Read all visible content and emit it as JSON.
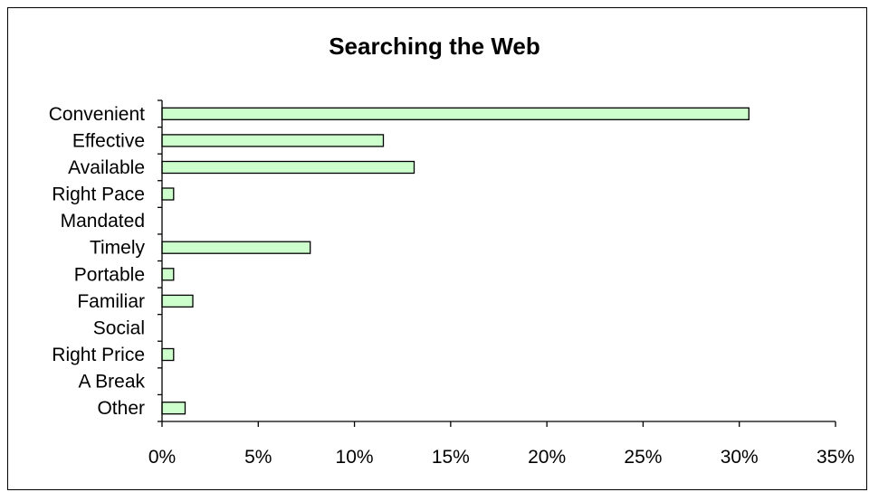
{
  "colors": {
    "bar_fill": "#ccffcc",
    "bar_stroke": "#000000",
    "axis": "#000000",
    "background": "#ffffff"
  },
  "chart_data": {
    "type": "bar",
    "orientation": "horizontal",
    "title": "Searching the Web",
    "xlabel": "",
    "ylabel": "",
    "categories": [
      "Convenient",
      "Effective",
      "Available",
      "Right Pace",
      "Mandated",
      "Timely",
      "Portable",
      "Familiar",
      "Social",
      "Right Price",
      "A Break",
      "Other"
    ],
    "values": [
      30.5,
      11.5,
      13.1,
      0.6,
      0,
      7.7,
      0.6,
      1.6,
      0,
      0.6,
      0,
      1.2
    ],
    "xlim": [
      0,
      35
    ],
    "x_ticks": [
      0,
      5,
      10,
      15,
      20,
      25,
      30,
      35
    ],
    "x_tick_labels": [
      "0%",
      "5%",
      "10%",
      "15%",
      "20%",
      "25%",
      "30%",
      "35%"
    ],
    "grid": false,
    "legend": "none"
  }
}
